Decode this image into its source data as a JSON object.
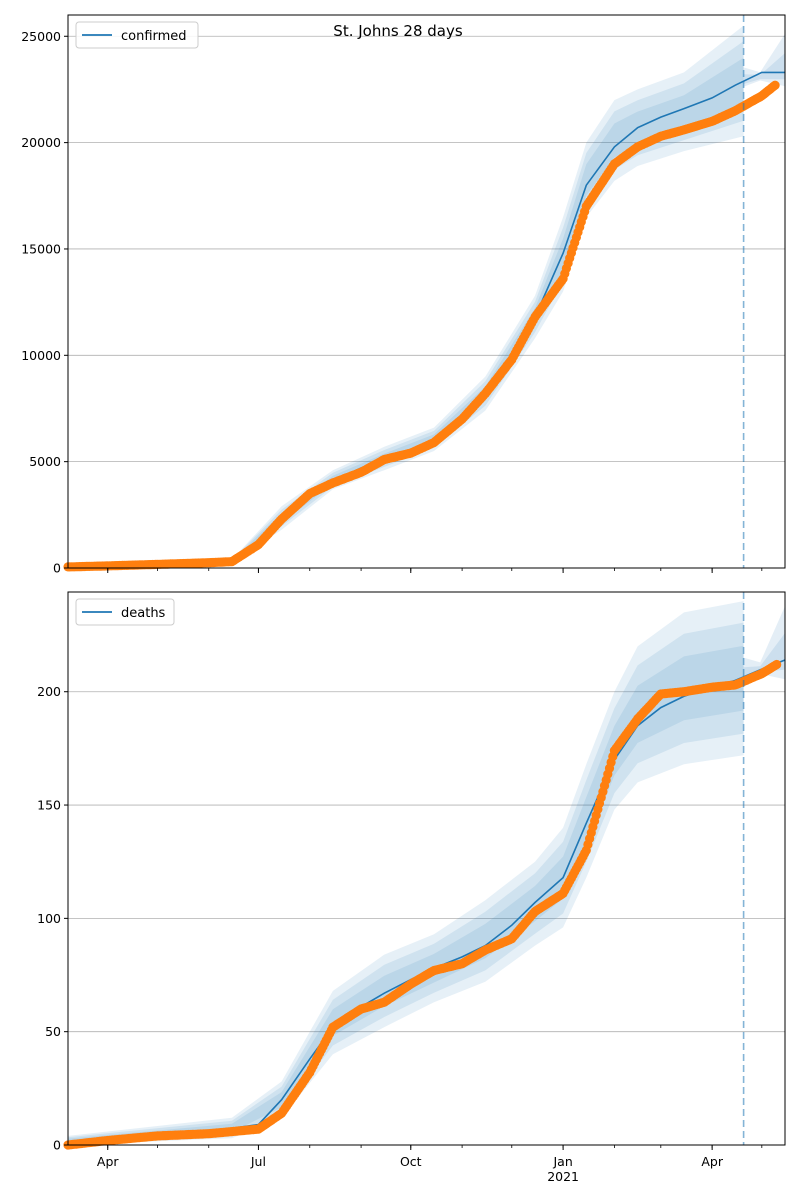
{
  "figure_title": "St. Johns 28 days",
  "chart_data": [
    {
      "type": "line",
      "legend": [
        "confirmed"
      ],
      "legend_position": "top-left",
      "grid": "horizontal",
      "xlim": [
        "2020-03-08",
        "2021-05-15"
      ],
      "ylim": [
        0,
        26000
      ],
      "y_ticks": [
        0,
        5000,
        10000,
        15000,
        20000,
        25000
      ],
      "x_tick_labels": [
        {
          "date": "2020-04-01",
          "label": "Apr"
        },
        {
          "date": "2020-07-01",
          "label": "Jul"
        },
        {
          "date": "2020-10-01",
          "label": "Oct"
        },
        {
          "date": "2021-01-01",
          "label": "Jan"
        },
        {
          "date": "2021-04-01",
          "label": "Apr"
        }
      ],
      "forecast_start": "2021-04-20",
      "series": [
        {
          "name": "confirmed",
          "kind": "model-line",
          "color": "#1f77b4",
          "x": [
            "2020-03-08",
            "2020-04-01",
            "2020-05-01",
            "2020-06-01",
            "2020-06-15",
            "2020-07-01",
            "2020-07-15",
            "2020-08-01",
            "2020-08-15",
            "2020-09-01",
            "2020-09-15",
            "2020-10-01",
            "2020-10-15",
            "2020-11-01",
            "2020-11-15",
            "2020-12-01",
            "2020-12-15",
            "2021-01-01",
            "2021-01-15",
            "2021-02-01",
            "2021-02-15",
            "2021-03-01",
            "2021-03-15",
            "2021-04-01",
            "2021-04-15",
            "2021-05-01",
            "2021-05-15"
          ],
          "y": [
            20,
            120,
            180,
            230,
            300,
            1100,
            2300,
            3500,
            4100,
            4700,
            5100,
            5500,
            6000,
            7000,
            8200,
            9800,
            11800,
            14800,
            18000,
            19800,
            20700,
            21200,
            21600,
            22100,
            22700,
            23300,
            23300
          ]
        },
        {
          "name": "observed",
          "kind": "points",
          "color": "#ff7f0e",
          "x": [
            "2020-03-08",
            "2020-04-01",
            "2020-05-01",
            "2020-06-01",
            "2020-06-15",
            "2020-07-01",
            "2020-07-15",
            "2020-08-01",
            "2020-08-15",
            "2020-09-01",
            "2020-09-15",
            "2020-10-01",
            "2020-10-15",
            "2020-11-01",
            "2020-11-15",
            "2020-12-01",
            "2020-12-15",
            "2021-01-01",
            "2021-01-15",
            "2021-02-01",
            "2021-02-15",
            "2021-03-01",
            "2021-03-15",
            "2021-04-01",
            "2021-04-15",
            "2021-05-01",
            "2021-05-09"
          ],
          "y": [
            50,
            100,
            170,
            250,
            300,
            1100,
            2300,
            3500,
            4000,
            4500,
            5100,
            5400,
            5900,
            7000,
            8200,
            9800,
            11800,
            13600,
            17000,
            19000,
            19800,
            20300,
            20600,
            21000,
            21500,
            22200,
            22700
          ]
        }
      ],
      "bands": [
        {
          "x": [
            "2020-03-08",
            "2020-06-15",
            "2020-07-15",
            "2020-08-15",
            "2020-09-15",
            "2020-10-15",
            "2020-11-15",
            "2020-12-15",
            "2021-01-01",
            "2021-01-15",
            "2021-02-01",
            "2021-02-15",
            "2021-03-15",
            "2021-04-20"
          ],
          "lower": [
            0,
            200,
            1800,
            3700,
            4600,
            5500,
            7400,
            10800,
            13000,
            16500,
            18200,
            18900,
            19600,
            20300
          ],
          "upper": [
            100,
            400,
            2900,
            4600,
            5700,
            6600,
            9000,
            12800,
            16500,
            20000,
            22000,
            22500,
            23300,
            25500
          ]
        }
      ]
    },
    {
      "type": "line",
      "legend": [
        "deaths"
      ],
      "legend_position": "top-left",
      "grid": "horizontal",
      "xlim": [
        "2020-03-08",
        "2021-05-15"
      ],
      "ylim": [
        0,
        244
      ],
      "y_ticks": [
        0,
        50,
        100,
        150,
        200
      ],
      "x_tick_labels": [
        {
          "date": "2020-04-01",
          "label": "Apr"
        },
        {
          "date": "2020-07-01",
          "label": "Jul"
        },
        {
          "date": "2020-10-01",
          "label": "Oct"
        },
        {
          "date": "2021-01-01",
          "label": "Jan\n2021"
        },
        {
          "date": "2021-04-01",
          "label": "Apr"
        }
      ],
      "forecast_start": "2021-04-20",
      "series": [
        {
          "name": "deaths",
          "kind": "model-line",
          "color": "#1f77b4",
          "x": [
            "2020-03-08",
            "2020-04-01",
            "2020-05-01",
            "2020-06-01",
            "2020-07-01",
            "2020-07-15",
            "2020-08-01",
            "2020-08-15",
            "2020-09-01",
            "2020-09-15",
            "2020-10-01",
            "2020-10-15",
            "2020-11-01",
            "2020-11-15",
            "2020-12-01",
            "2020-12-15",
            "2021-01-01",
            "2021-01-15",
            "2021-02-01",
            "2021-02-15",
            "2021-03-01",
            "2021-03-15",
            "2021-04-01",
            "2021-04-15",
            "2021-05-01",
            "2021-05-15"
          ],
          "y": [
            0,
            2,
            4,
            6,
            9,
            20,
            38,
            52,
            61,
            67,
            73,
            78,
            83,
            88,
            97,
            107,
            118,
            142,
            170,
            185,
            193,
            198,
            202,
            205,
            210,
            214
          ]
        },
        {
          "name": "observed",
          "kind": "points",
          "color": "#ff7f0e",
          "x": [
            "2020-03-08",
            "2020-04-01",
            "2020-05-01",
            "2020-06-01",
            "2020-07-01",
            "2020-07-15",
            "2020-08-01",
            "2020-08-15",
            "2020-09-01",
            "2020-09-15",
            "2020-10-01",
            "2020-10-15",
            "2020-11-01",
            "2020-11-15",
            "2020-12-01",
            "2020-12-15",
            "2021-01-01",
            "2021-01-15",
            "2021-02-01",
            "2021-02-15",
            "2021-03-01",
            "2021-03-15",
            "2021-04-01",
            "2021-04-15",
            "2021-05-01",
            "2021-05-10"
          ],
          "y": [
            0,
            2,
            4,
            5,
            7,
            14,
            32,
            52,
            60,
            63,
            71,
            77,
            80,
            86,
            91,
            103,
            111,
            130,
            174,
            188,
            199,
            200,
            202,
            203,
            208,
            212
          ]
        }
      ],
      "bands": [
        {
          "x": [
            "2020-03-08",
            "2020-06-15",
            "2020-07-15",
            "2020-08-15",
            "2020-09-15",
            "2020-10-15",
            "2020-11-15",
            "2020-12-15",
            "2021-01-01",
            "2021-01-15",
            "2021-02-01",
            "2021-02-15",
            "2021-03-15",
            "2021-04-20"
          ],
          "lower": [
            0,
            3,
            12,
            40,
            52,
            63,
            72,
            88,
            96,
            118,
            148,
            160,
            168,
            172
          ],
          "upper": [
            4,
            12,
            28,
            68,
            84,
            93,
            108,
            125,
            140,
            168,
            200,
            220,
            235,
            240
          ]
        }
      ]
    }
  ]
}
